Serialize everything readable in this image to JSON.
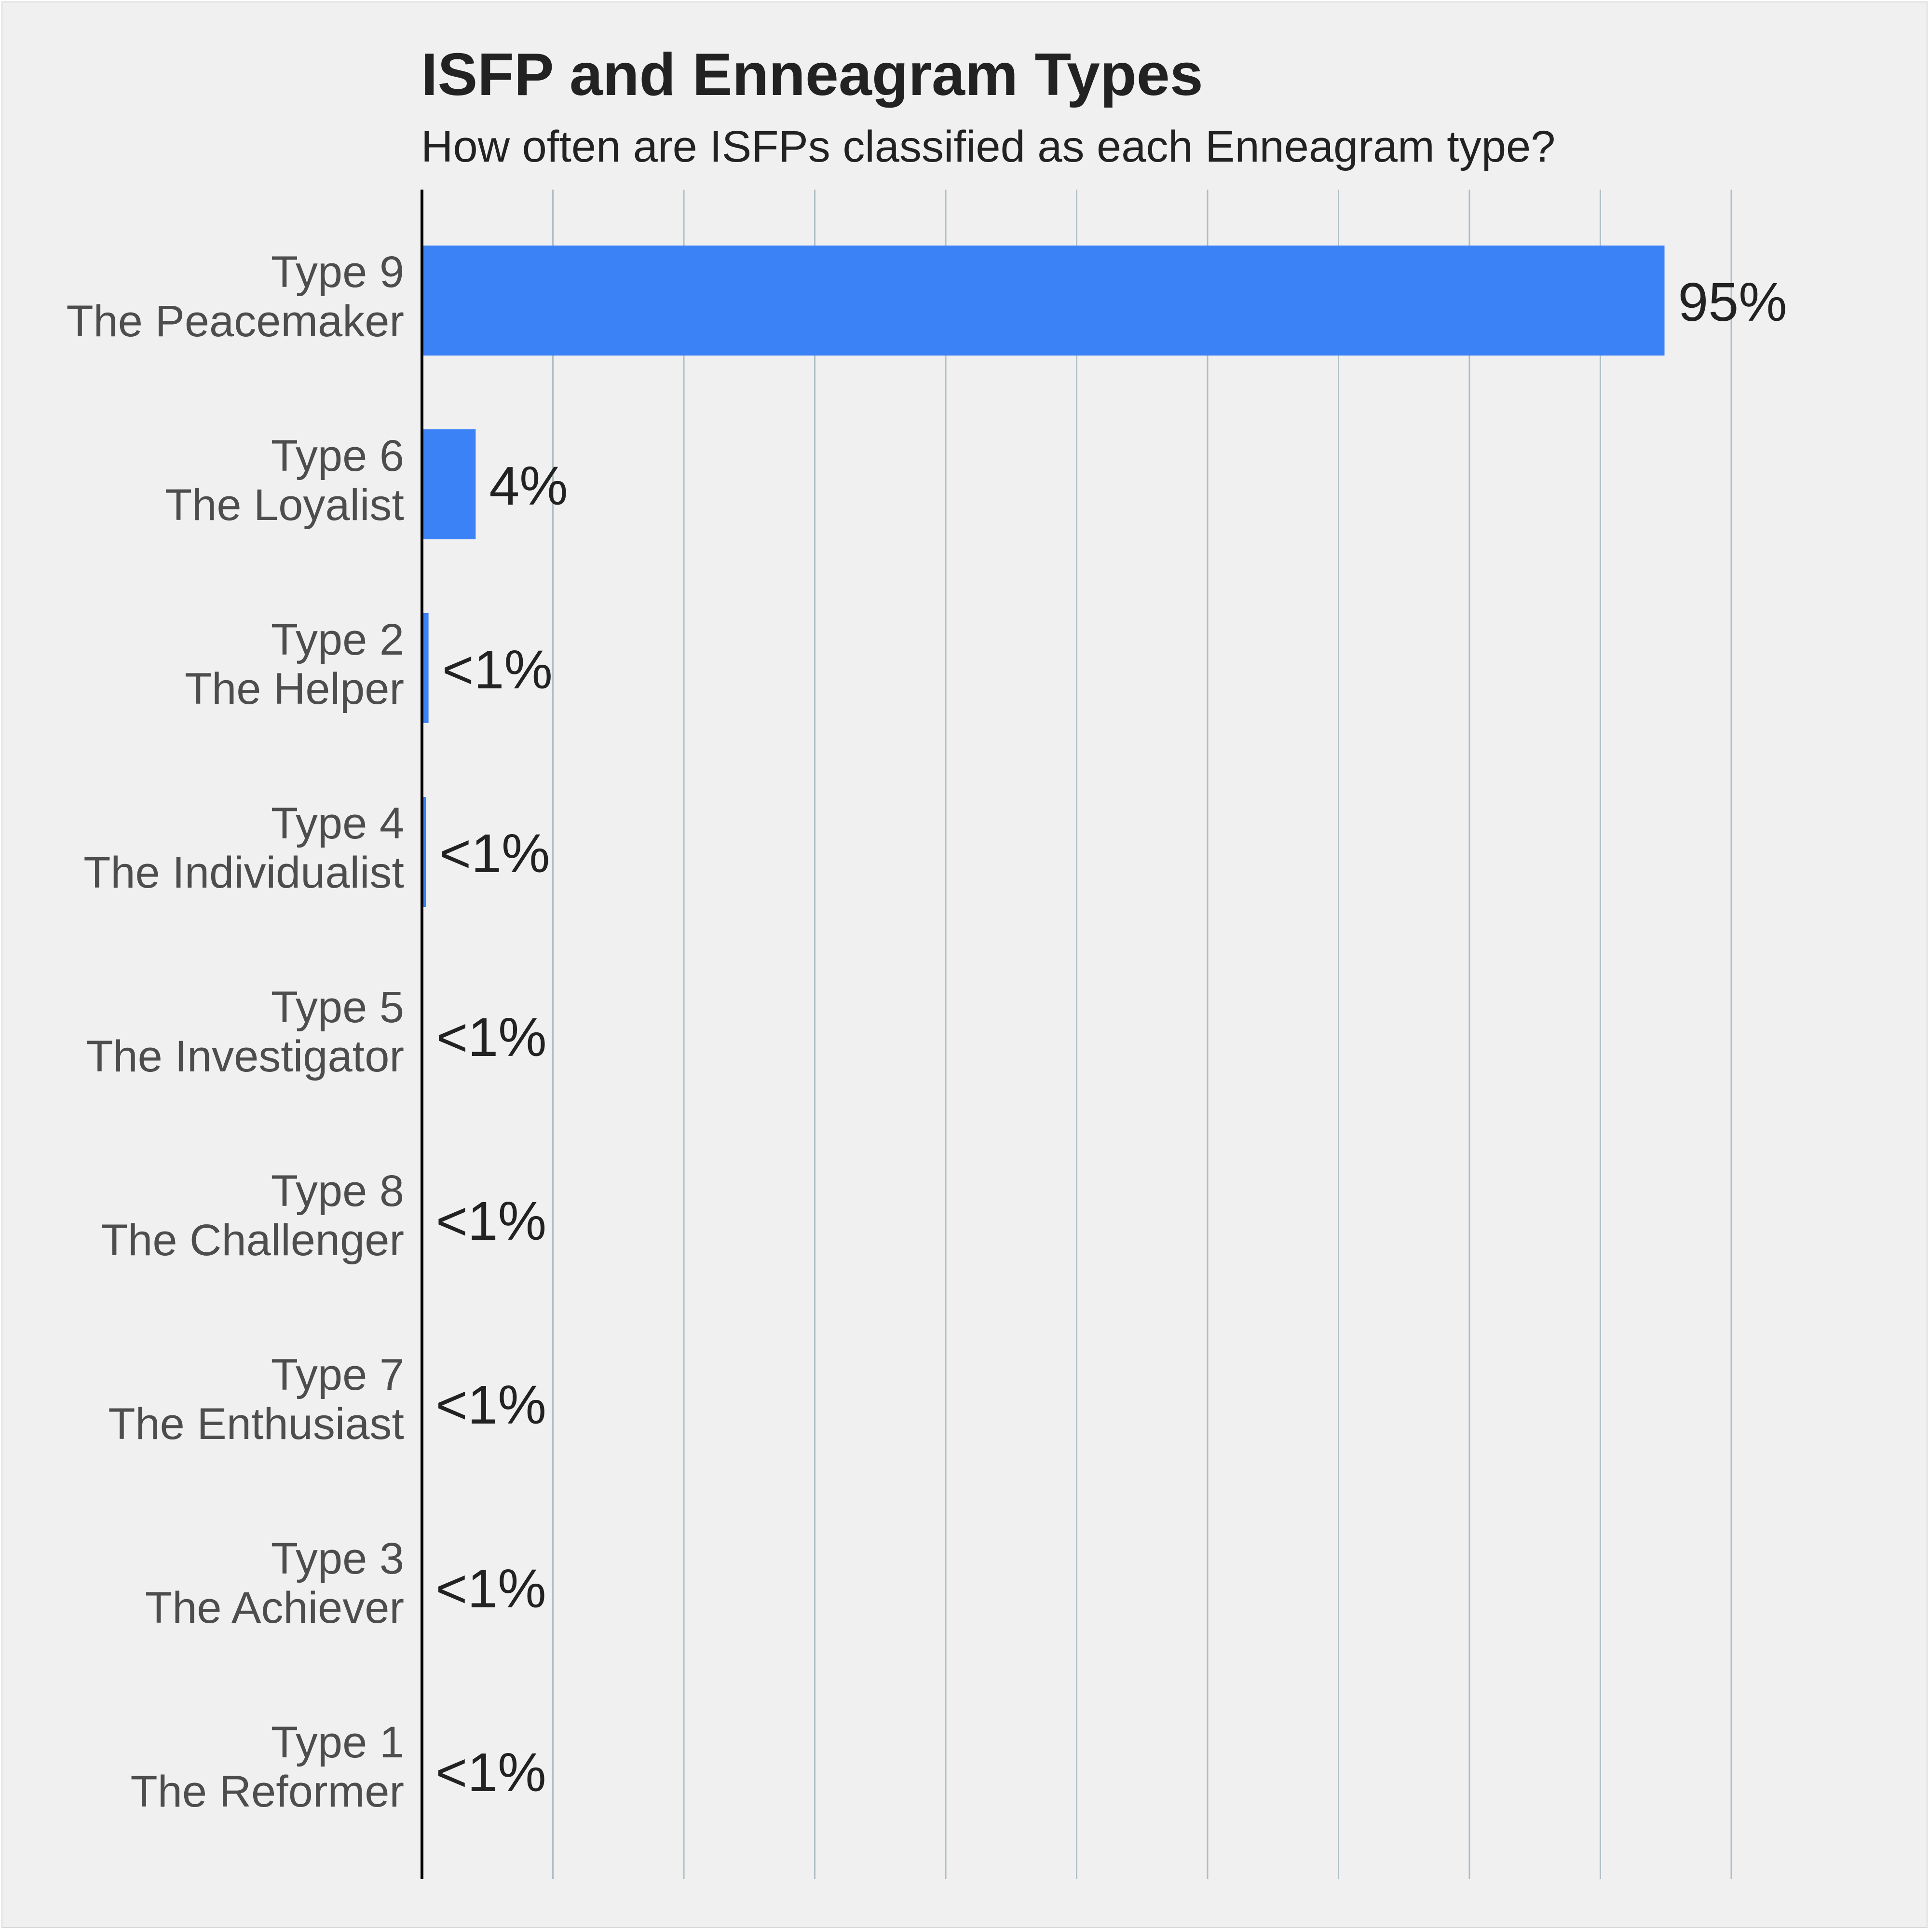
{
  "chart_data": {
    "type": "bar",
    "orientation": "horizontal",
    "title": "ISFP and Enneagram Types",
    "subtitle": "How often are ISFPs classified as each Enneagram type?",
    "xlim": [
      0,
      100
    ],
    "grid": "vertical",
    "categories": [
      {
        "line1": "Type 9",
        "line2": "The Peacemaker"
      },
      {
        "line1": "Type 6",
        "line2": "The Loyalist"
      },
      {
        "line1": "Type 2",
        "line2": "The Helper"
      },
      {
        "line1": "Type 4",
        "line2": "The Individualist"
      },
      {
        "line1": "Type 5",
        "line2": "The Investigator"
      },
      {
        "line1": "Type 8",
        "line2": "The Challenger"
      },
      {
        "line1": "Type 7",
        "line2": "The Enthusiast"
      },
      {
        "line1": "Type 3",
        "line2": "The Achiever"
      },
      {
        "line1": "Type 1",
        "line2": "The Reformer"
      }
    ],
    "values": [
      94.9,
      4.1,
      0.5,
      0.3,
      0.05,
      0.03,
      0.02,
      0.01,
      0.01
    ],
    "labels": [
      "95%",
      "4%",
      "<1%",
      "<1%",
      "<1%",
      "<1%",
      "<1%",
      "<1%",
      "<1%"
    ],
    "colors": {
      "bar": "#3b82f6",
      "background": "#f0f0f0",
      "grid": "#b0bec5",
      "axis": "#000000"
    }
  }
}
